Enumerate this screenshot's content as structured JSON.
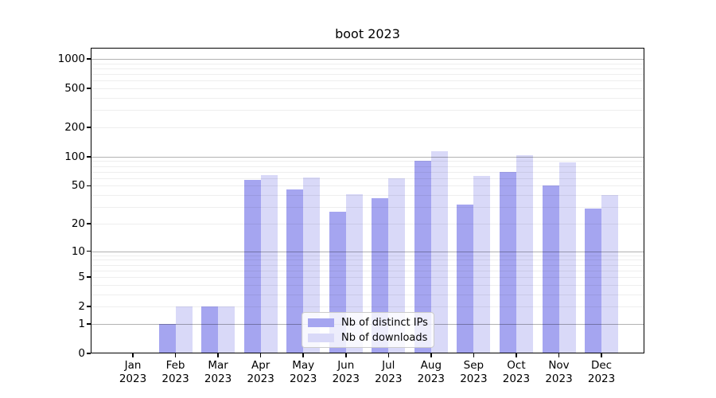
{
  "figure": {
    "title": "boot 2023"
  },
  "chart_data": {
    "type": "bar",
    "title": "boot 2023",
    "categories": [
      "Jan",
      "Feb",
      "Mar",
      "Apr",
      "May",
      "Jun",
      "Jul",
      "Aug",
      "Sep",
      "Oct",
      "Nov",
      "Dec"
    ],
    "category_year": "2023",
    "series": [
      {
        "name": "Nb of distinct IPs",
        "color": "#a5a5f0",
        "values": [
          0,
          1,
          2,
          58,
          46,
          27,
          37,
          91,
          32,
          70,
          50,
          29
        ]
      },
      {
        "name": "Nb of downloads",
        "color": "#d9d9f8",
        "values": [
          0,
          2,
          2,
          65,
          61,
          41,
          60,
          113,
          63,
          103,
          87,
          40
        ]
      }
    ],
    "xlabel": "",
    "ylabel": "",
    "yscale": "log10(value+1)",
    "ylim": [
      0,
      1300
    ],
    "yticks": [
      0,
      1,
      2,
      5,
      10,
      20,
      50,
      100,
      200,
      500,
      1000
    ],
    "major_gridlines": [
      1,
      10,
      100,
      1000
    ],
    "grid": true,
    "legend_position": "lower center"
  }
}
